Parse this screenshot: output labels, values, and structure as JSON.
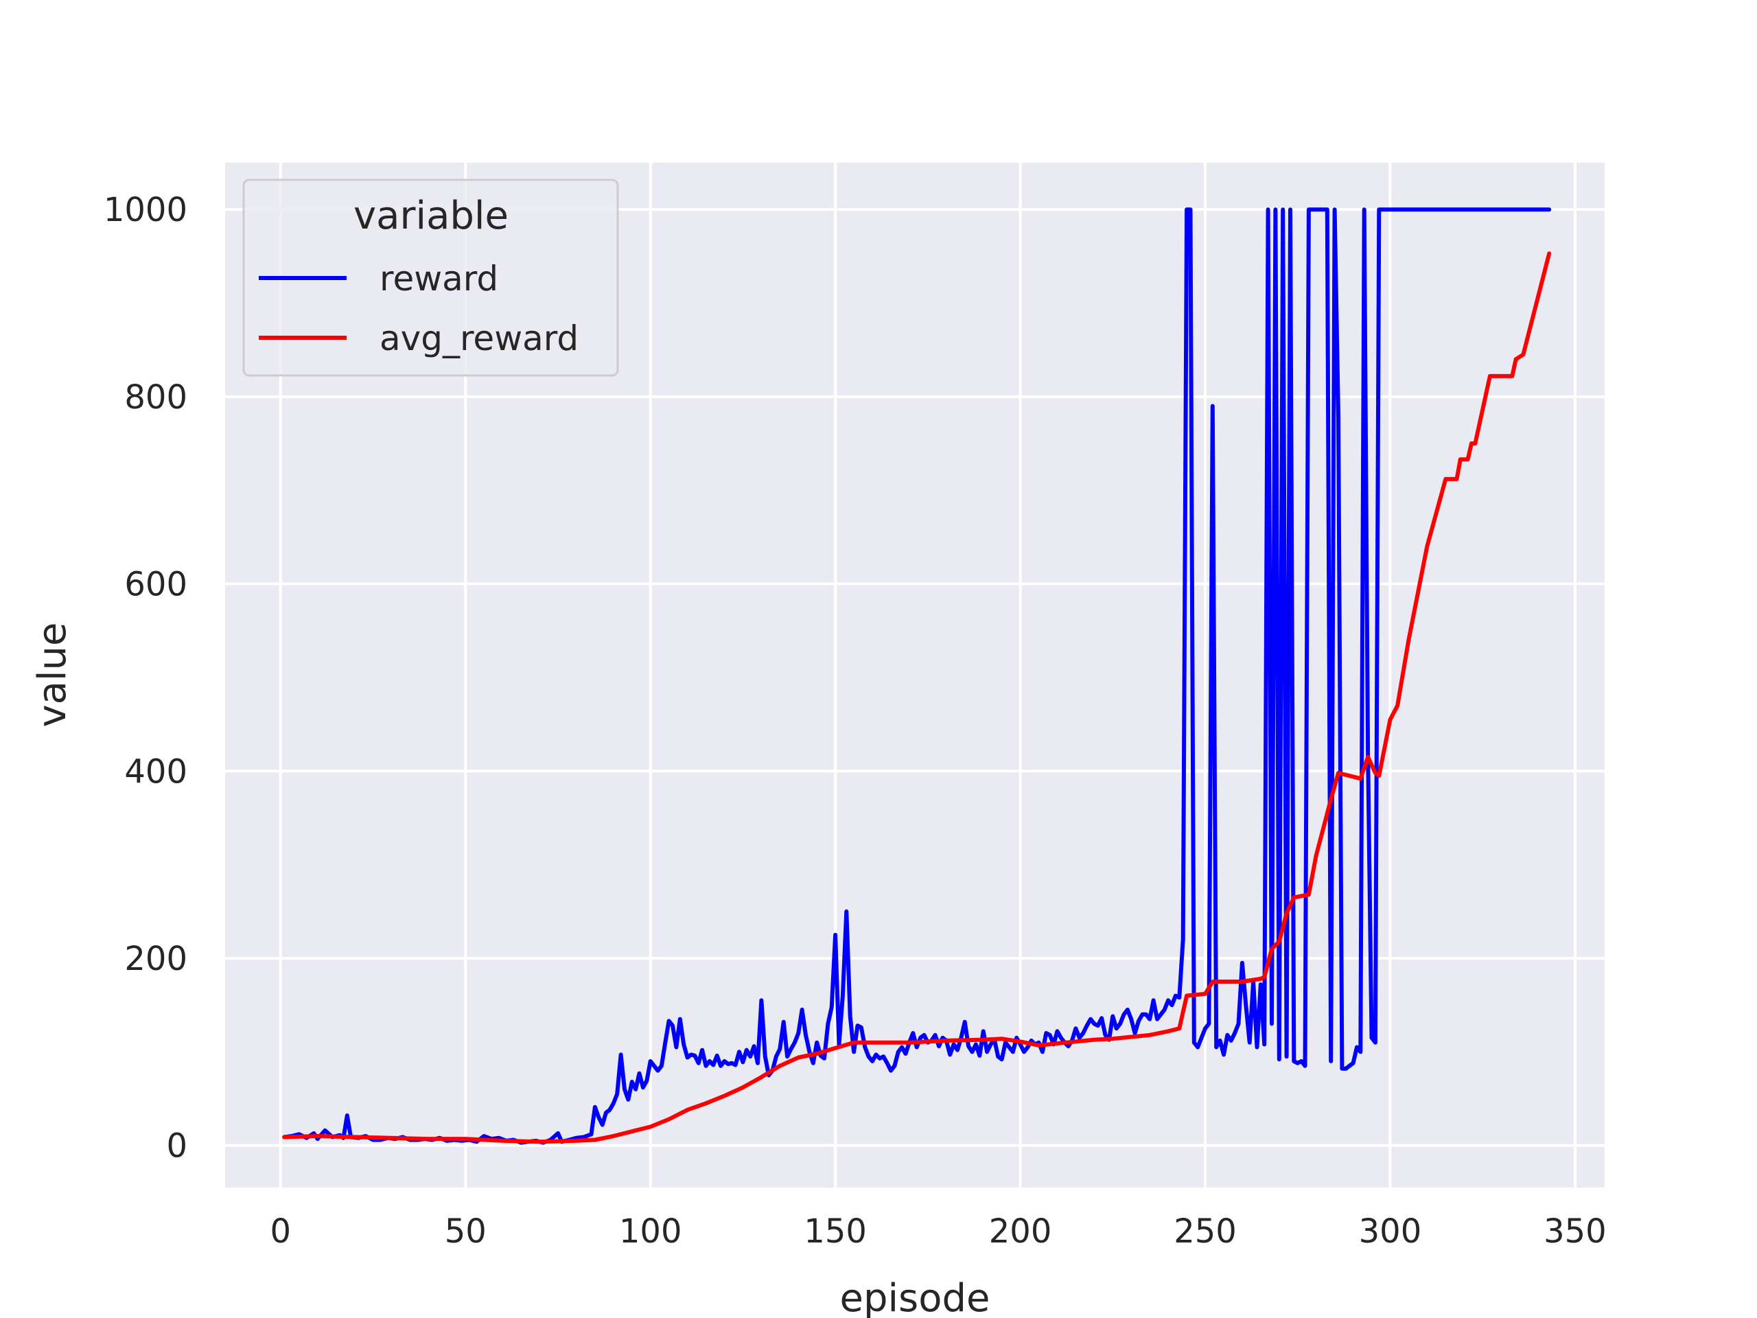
{
  "chart_data": {
    "type": "line",
    "title": "",
    "xlabel": "episode",
    "ylabel": "value",
    "xlim": [
      -15,
      358
    ],
    "ylim": [
      -45,
      1050
    ],
    "xticks": [
      0,
      50,
      100,
      150,
      200,
      250,
      300,
      350
    ],
    "yticks": [
      0,
      200,
      400,
      600,
      800,
      1000
    ],
    "grid": true,
    "background": "#eaeaf2",
    "legend": {
      "title": "variable",
      "placement": "top-left"
    },
    "series": [
      {
        "name": "reward",
        "color": "#0000ff",
        "points": [
          [
            1,
            9
          ],
          [
            3,
            10
          ],
          [
            5,
            12
          ],
          [
            7,
            8
          ],
          [
            9,
            13
          ],
          [
            10,
            7
          ],
          [
            12,
            16
          ],
          [
            14,
            9
          ],
          [
            16,
            11
          ],
          [
            17,
            8
          ],
          [
            18,
            32
          ],
          [
            19,
            9
          ],
          [
            21,
            8
          ],
          [
            23,
            10
          ],
          [
            25,
            6
          ],
          [
            27,
            6
          ],
          [
            29,
            8
          ],
          [
            31,
            7
          ],
          [
            33,
            9
          ],
          [
            35,
            6
          ],
          [
            37,
            6
          ],
          [
            39,
            7
          ],
          [
            41,
            6
          ],
          [
            43,
            8
          ],
          [
            45,
            5
          ],
          [
            47,
            6
          ],
          [
            49,
            5
          ],
          [
            51,
            6
          ],
          [
            53,
            4
          ],
          [
            55,
            10
          ],
          [
            57,
            7
          ],
          [
            59,
            8
          ],
          [
            61,
            5
          ],
          [
            63,
            6
          ],
          [
            65,
            3
          ],
          [
            67,
            4
          ],
          [
            69,
            5
          ],
          [
            71,
            3
          ],
          [
            73,
            6
          ],
          [
            75,
            13
          ],
          [
            76,
            4
          ],
          [
            78,
            6
          ],
          [
            80,
            8
          ],
          [
            82,
            9
          ],
          [
            84,
            12
          ],
          [
            85,
            41
          ],
          [
            86,
            30
          ],
          [
            87,
            22
          ],
          [
            88,
            35
          ],
          [
            89,
            38
          ],
          [
            90,
            45
          ],
          [
            91,
            55
          ],
          [
            92,
            97
          ],
          [
            93,
            60
          ],
          [
            94,
            49
          ],
          [
            95,
            68
          ],
          [
            96,
            60
          ],
          [
            97,
            77
          ],
          [
            98,
            62
          ],
          [
            99,
            69
          ],
          [
            100,
            90
          ],
          [
            101,
            85
          ],
          [
            102,
            80
          ],
          [
            103,
            85
          ],
          [
            104,
            110
          ],
          [
            105,
            133
          ],
          [
            106,
            128
          ],
          [
            107,
            105
          ],
          [
            108,
            135
          ],
          [
            109,
            108
          ],
          [
            110,
            94
          ],
          [
            111,
            97
          ],
          [
            112,
            96
          ],
          [
            113,
            88
          ],
          [
            114,
            102
          ],
          [
            115,
            85
          ],
          [
            116,
            90
          ],
          [
            117,
            86
          ],
          [
            118,
            96
          ],
          [
            119,
            85
          ],
          [
            120,
            90
          ],
          [
            121,
            87
          ],
          [
            122,
            88
          ],
          [
            123,
            86
          ],
          [
            124,
            100
          ],
          [
            125,
            89
          ],
          [
            126,
            102
          ],
          [
            127,
            95
          ],
          [
            128,
            106
          ],
          [
            129,
            88
          ],
          [
            130,
            155
          ],
          [
            131,
            95
          ],
          [
            132,
            75
          ],
          [
            133,
            80
          ],
          [
            134,
            95
          ],
          [
            135,
            103
          ],
          [
            136,
            132
          ],
          [
            137,
            95
          ],
          [
            138,
            103
          ],
          [
            139,
            110
          ],
          [
            140,
            120
          ],
          [
            141,
            145
          ],
          [
            142,
            118
          ],
          [
            143,
            100
          ],
          [
            144,
            88
          ],
          [
            145,
            110
          ],
          [
            146,
            96
          ],
          [
            147,
            93
          ],
          [
            148,
            130
          ],
          [
            149,
            148
          ],
          [
            150,
            225
          ],
          [
            151,
            108
          ],
          [
            152,
            160
          ],
          [
            153,
            250
          ],
          [
            154,
            138
          ],
          [
            155,
            100
          ],
          [
            156,
            128
          ],
          [
            157,
            126
          ],
          [
            158,
            105
          ],
          [
            159,
            95
          ],
          [
            160,
            90
          ],
          [
            161,
            97
          ],
          [
            162,
            93
          ],
          [
            163,
            95
          ],
          [
            164,
            88
          ],
          [
            165,
            80
          ],
          [
            166,
            85
          ],
          [
            167,
            100
          ],
          [
            168,
            105
          ],
          [
            169,
            98
          ],
          [
            170,
            110
          ],
          [
            171,
            120
          ],
          [
            172,
            105
          ],
          [
            173,
            115
          ],
          [
            174,
            118
          ],
          [
            175,
            110
          ],
          [
            176,
            112
          ],
          [
            177,
            118
          ],
          [
            178,
            106
          ],
          [
            179,
            115
          ],
          [
            180,
            112
          ],
          [
            181,
            97
          ],
          [
            182,
            108
          ],
          [
            183,
            102
          ],
          [
            184,
            115
          ],
          [
            185,
            132
          ],
          [
            186,
            106
          ],
          [
            187,
            100
          ],
          [
            188,
            108
          ],
          [
            189,
            96
          ],
          [
            190,
            122
          ],
          [
            191,
            100
          ],
          [
            192,
            108
          ],
          [
            193,
            113
          ],
          [
            194,
            95
          ],
          [
            195,
            92
          ],
          [
            196,
            110
          ],
          [
            197,
            105
          ],
          [
            198,
            100
          ],
          [
            199,
            115
          ],
          [
            200,
            108
          ],
          [
            201,
            100
          ],
          [
            202,
            105
          ],
          [
            203,
            112
          ],
          [
            204,
            108
          ],
          [
            205,
            110
          ],
          [
            206,
            100
          ],
          [
            207,
            120
          ],
          [
            208,
            118
          ],
          [
            209,
            108
          ],
          [
            210,
            122
          ],
          [
            211,
            115
          ],
          [
            212,
            110
          ],
          [
            213,
            106
          ],
          [
            214,
            112
          ],
          [
            215,
            125
          ],
          [
            216,
            115
          ],
          [
            217,
            120
          ],
          [
            218,
            128
          ],
          [
            219,
            135
          ],
          [
            220,
            130
          ],
          [
            221,
            128
          ],
          [
            222,
            136
          ],
          [
            223,
            118
          ],
          [
            224,
            113
          ],
          [
            225,
            138
          ],
          [
            226,
            125
          ],
          [
            227,
            130
          ],
          [
            228,
            140
          ],
          [
            229,
            145
          ],
          [
            230,
            135
          ],
          [
            231,
            120
          ],
          [
            232,
            133
          ],
          [
            233,
            140
          ],
          [
            234,
            140
          ],
          [
            235,
            135
          ],
          [
            236,
            155
          ],
          [
            237,
            135
          ],
          [
            238,
            140
          ],
          [
            239,
            145
          ],
          [
            240,
            155
          ],
          [
            241,
            150
          ],
          [
            242,
            160
          ],
          [
            243,
            158
          ],
          [
            244,
            220
          ],
          [
            245,
            1000
          ],
          [
            246,
            1000
          ],
          [
            247,
            110
          ],
          [
            248,
            105
          ],
          [
            249,
            115
          ],
          [
            250,
            125
          ],
          [
            251,
            130
          ],
          [
            252,
            790
          ],
          [
            253,
            105
          ],
          [
            254,
            112
          ],
          [
            255,
            97
          ],
          [
            256,
            118
          ],
          [
            257,
            112
          ],
          [
            258,
            120
          ],
          [
            259,
            130
          ],
          [
            260,
            195
          ],
          [
            261,
            150
          ],
          [
            262,
            110
          ],
          [
            263,
            175
          ],
          [
            264,
            105
          ],
          [
            265,
            172
          ],
          [
            266,
            108
          ],
          [
            267,
            1000
          ],
          [
            268,
            130
          ],
          [
            269,
            1000
          ],
          [
            270,
            92
          ],
          [
            271,
            1000
          ],
          [
            272,
            95
          ],
          [
            273,
            1000
          ],
          [
            274,
            90
          ],
          [
            275,
            88
          ],
          [
            276,
            90
          ],
          [
            277,
            85
          ],
          [
            278,
            1000
          ],
          [
            279,
            1000
          ],
          [
            280,
            1000
          ],
          [
            281,
            1000
          ],
          [
            282,
            1000
          ],
          [
            283,
            1000
          ],
          [
            284,
            90
          ],
          [
            285,
            1000
          ],
          [
            286,
            780
          ],
          [
            287,
            82
          ],
          [
            288,
            82
          ],
          [
            289,
            85
          ],
          [
            290,
            88
          ],
          [
            291,
            105
          ],
          [
            292,
            100
          ],
          [
            293,
            1000
          ],
          [
            294,
            420
          ],
          [
            295,
            115
          ],
          [
            296,
            110
          ],
          [
            297,
            1000
          ],
          [
            298,
            1000
          ],
          [
            300,
            1000
          ],
          [
            320,
            1000
          ],
          [
            343,
            1000
          ]
        ]
      },
      {
        "name": "avg_reward",
        "color": "#ff0000",
        "points": [
          [
            1,
            9
          ],
          [
            10,
            10
          ],
          [
            20,
            9
          ],
          [
            30,
            8
          ],
          [
            40,
            7
          ],
          [
            50,
            7
          ],
          [
            60,
            5
          ],
          [
            70,
            4
          ],
          [
            80,
            5
          ],
          [
            85,
            6
          ],
          [
            90,
            10
          ],
          [
            95,
            15
          ],
          [
            100,
            20
          ],
          [
            105,
            28
          ],
          [
            110,
            38
          ],
          [
            115,
            45
          ],
          [
            120,
            53
          ],
          [
            125,
            62
          ],
          [
            130,
            73
          ],
          [
            135,
            85
          ],
          [
            140,
            94
          ],
          [
            145,
            98
          ],
          [
            150,
            104
          ],
          [
            155,
            110
          ],
          [
            160,
            110
          ],
          [
            170,
            110
          ],
          [
            180,
            112
          ],
          [
            190,
            113
          ],
          [
            195,
            114
          ],
          [
            200,
            111
          ],
          [
            205,
            107
          ],
          [
            210,
            109
          ],
          [
            215,
            111
          ],
          [
            220,
            113
          ],
          [
            225,
            114
          ],
          [
            230,
            116
          ],
          [
            235,
            118
          ],
          [
            240,
            122
          ],
          [
            243,
            125
          ],
          [
            245,
            160
          ],
          [
            250,
            162
          ],
          [
            252,
            175
          ],
          [
            260,
            175
          ],
          [
            265,
            178
          ],
          [
            266,
            180
          ],
          [
            268,
            210
          ],
          [
            270,
            218
          ],
          [
            272,
            248
          ],
          [
            274,
            265
          ],
          [
            278,
            268
          ],
          [
            280,
            310
          ],
          [
            282,
            340
          ],
          [
            284,
            370
          ],
          [
            286,
            398
          ],
          [
            292,
            392
          ],
          [
            294,
            415
          ],
          [
            296,
            398
          ],
          [
            297,
            395
          ],
          [
            300,
            455
          ],
          [
            302,
            470
          ],
          [
            305,
            540
          ],
          [
            310,
            640
          ],
          [
            315,
            712
          ],
          [
            318,
            712
          ],
          [
            319,
            733
          ],
          [
            321,
            733
          ],
          [
            322,
            750
          ],
          [
            323,
            750
          ],
          [
            327,
            822
          ],
          [
            333,
            822
          ],
          [
            334,
            840
          ],
          [
            336,
            845
          ],
          [
            343,
            953
          ]
        ]
      }
    ]
  }
}
